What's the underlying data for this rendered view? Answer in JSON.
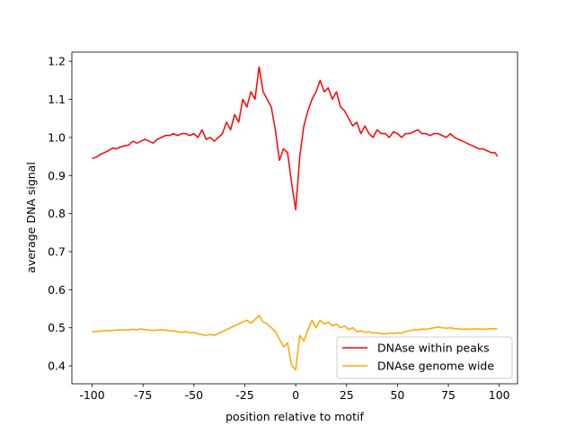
{
  "chart_data": {
    "type": "line",
    "xlabel": "position relative to motif",
    "ylabel": "average DNA signal",
    "x": [
      -100,
      -98,
      -96,
      -94,
      -92,
      -90,
      -88,
      -86,
      -84,
      -82,
      -80,
      -78,
      -76,
      -74,
      -72,
      -70,
      -68,
      -66,
      -64,
      -62,
      -60,
      -58,
      -56,
      -54,
      -52,
      -50,
      -48,
      -46,
      -44,
      -42,
      -40,
      -38,
      -36,
      -34,
      -32,
      -30,
      -28,
      -26,
      -24,
      -22,
      -20,
      -18,
      -16,
      -14,
      -12,
      -10,
      -8,
      -6,
      -4,
      -2,
      0,
      2,
      4,
      6,
      8,
      10,
      12,
      14,
      16,
      18,
      20,
      22,
      24,
      26,
      28,
      30,
      32,
      34,
      36,
      38,
      40,
      42,
      44,
      46,
      48,
      50,
      52,
      54,
      56,
      58,
      60,
      62,
      64,
      66,
      68,
      70,
      72,
      74,
      76,
      78,
      80,
      82,
      84,
      86,
      88,
      90,
      92,
      94,
      96,
      98,
      99
    ],
    "series": [
      {
        "name": "DNAse within peaks",
        "color": "#ff0000",
        "values": [
          0.945,
          0.948,
          0.955,
          0.96,
          0.965,
          0.972,
          0.97,
          0.975,
          0.978,
          0.98,
          0.99,
          0.985,
          0.99,
          0.995,
          0.99,
          0.985,
          0.995,
          1.0,
          1.005,
          1.005,
          1.01,
          1.005,
          1.01,
          1.01,
          1.005,
          1.01,
          1.0,
          1.02,
          0.995,
          1.0,
          0.99,
          1.0,
          1.01,
          1.04,
          1.02,
          1.06,
          1.04,
          1.1,
          1.08,
          1.12,
          1.1,
          1.185,
          1.12,
          1.1,
          1.08,
          1.02,
          0.94,
          0.97,
          0.96,
          0.88,
          0.81,
          0.95,
          1.03,
          1.07,
          1.1,
          1.12,
          1.15,
          1.12,
          1.13,
          1.1,
          1.12,
          1.08,
          1.07,
          1.05,
          1.03,
          1.04,
          1.01,
          1.03,
          1.01,
          1.0,
          1.02,
          1.01,
          1.01,
          1.0,
          1.015,
          1.01,
          1.0,
          1.01,
          1.01,
          1.015,
          1.02,
          1.01,
          1.01,
          1.005,
          1.01,
          1.01,
          1.005,
          1.0,
          1.01,
          1.0,
          0.995,
          0.99,
          0.985,
          0.98,
          0.975,
          0.97,
          0.97,
          0.965,
          0.96,
          0.96,
          0.95
        ]
      },
      {
        "name": "DNAse genome wide",
        "color": "#ffa500",
        "values": [
          0.49,
          0.49,
          0.492,
          0.492,
          0.493,
          0.493,
          0.494,
          0.494,
          0.495,
          0.494,
          0.496,
          0.495,
          0.497,
          0.495,
          0.494,
          0.493,
          0.494,
          0.495,
          0.494,
          0.492,
          0.492,
          0.49,
          0.488,
          0.49,
          0.487,
          0.488,
          0.484,
          0.482,
          0.48,
          0.483,
          0.48,
          0.485,
          0.49,
          0.495,
          0.5,
          0.505,
          0.51,
          0.515,
          0.52,
          0.512,
          0.522,
          0.532,
          0.515,
          0.51,
          0.5,
          0.49,
          0.47,
          0.45,
          0.46,
          0.4,
          0.39,
          0.48,
          0.465,
          0.495,
          0.52,
          0.5,
          0.52,
          0.51,
          0.515,
          0.505,
          0.51,
          0.5,
          0.505,
          0.495,
          0.5,
          0.49,
          0.492,
          0.488,
          0.49,
          0.486,
          0.487,
          0.485,
          0.484,
          0.486,
          0.485,
          0.487,
          0.486,
          0.49,
          0.492,
          0.495,
          0.494,
          0.497,
          0.496,
          0.498,
          0.5,
          0.502,
          0.5,
          0.499,
          0.5,
          0.498,
          0.497,
          0.496,
          0.497,
          0.496,
          0.497,
          0.497,
          0.496,
          0.497,
          0.498,
          0.497,
          0.498
        ]
      }
    ],
    "xlim": [
      -109.95,
      108.95
    ],
    "ylim": [
      0.353,
      1.224
    ],
    "xticks": [
      -100,
      -75,
      -50,
      -25,
      0,
      25,
      50,
      75,
      100
    ],
    "yticks": [
      0.4,
      0.5,
      0.6,
      0.7,
      0.8,
      0.9,
      {
        "value": 1,
        "label": "1.0"
      },
      1.1,
      1.2
    ],
    "legend": "lower right"
  }
}
